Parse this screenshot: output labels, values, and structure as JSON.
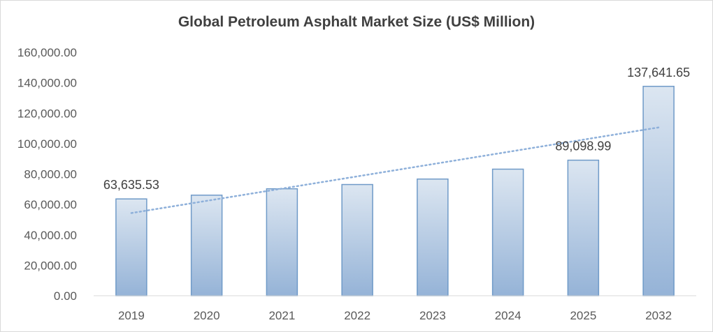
{
  "chart_data": {
    "type": "bar",
    "title": "Global Petroleum Asphalt Market Size (US$ Million)",
    "xlabel": "",
    "ylabel": "",
    "categories": [
      "2019",
      "2020",
      "2021",
      "2022",
      "2023",
      "2024",
      "2025",
      "2032"
    ],
    "values": [
      63635.53,
      66100,
      70300,
      73100,
      76700,
      83200,
      89098.99,
      137641.65
    ],
    "data_labels": [
      "63,635.53",
      null,
      null,
      null,
      null,
      null,
      "89,098.99",
      "137,641.65"
    ],
    "ylim": [
      0,
      160000
    ],
    "yticks": [
      0,
      20000,
      40000,
      60000,
      80000,
      100000,
      120000,
      140000,
      160000
    ],
    "ytick_labels": [
      "0.00",
      "20,000.00",
      "40,000.00",
      "60,000.00",
      "80,000.00",
      "100,000.00",
      "120,000.00",
      "140,000.00",
      "160,000.00"
    ],
    "trendline": {
      "type": "linear",
      "style": "dotted"
    },
    "grid": false,
    "legend": "none",
    "colors": {
      "bar_top": "#dce6f1",
      "bar_bottom": "#95b3d7",
      "bar_border": "#6f9ac8",
      "trendline": "#8eb0da"
    }
  }
}
